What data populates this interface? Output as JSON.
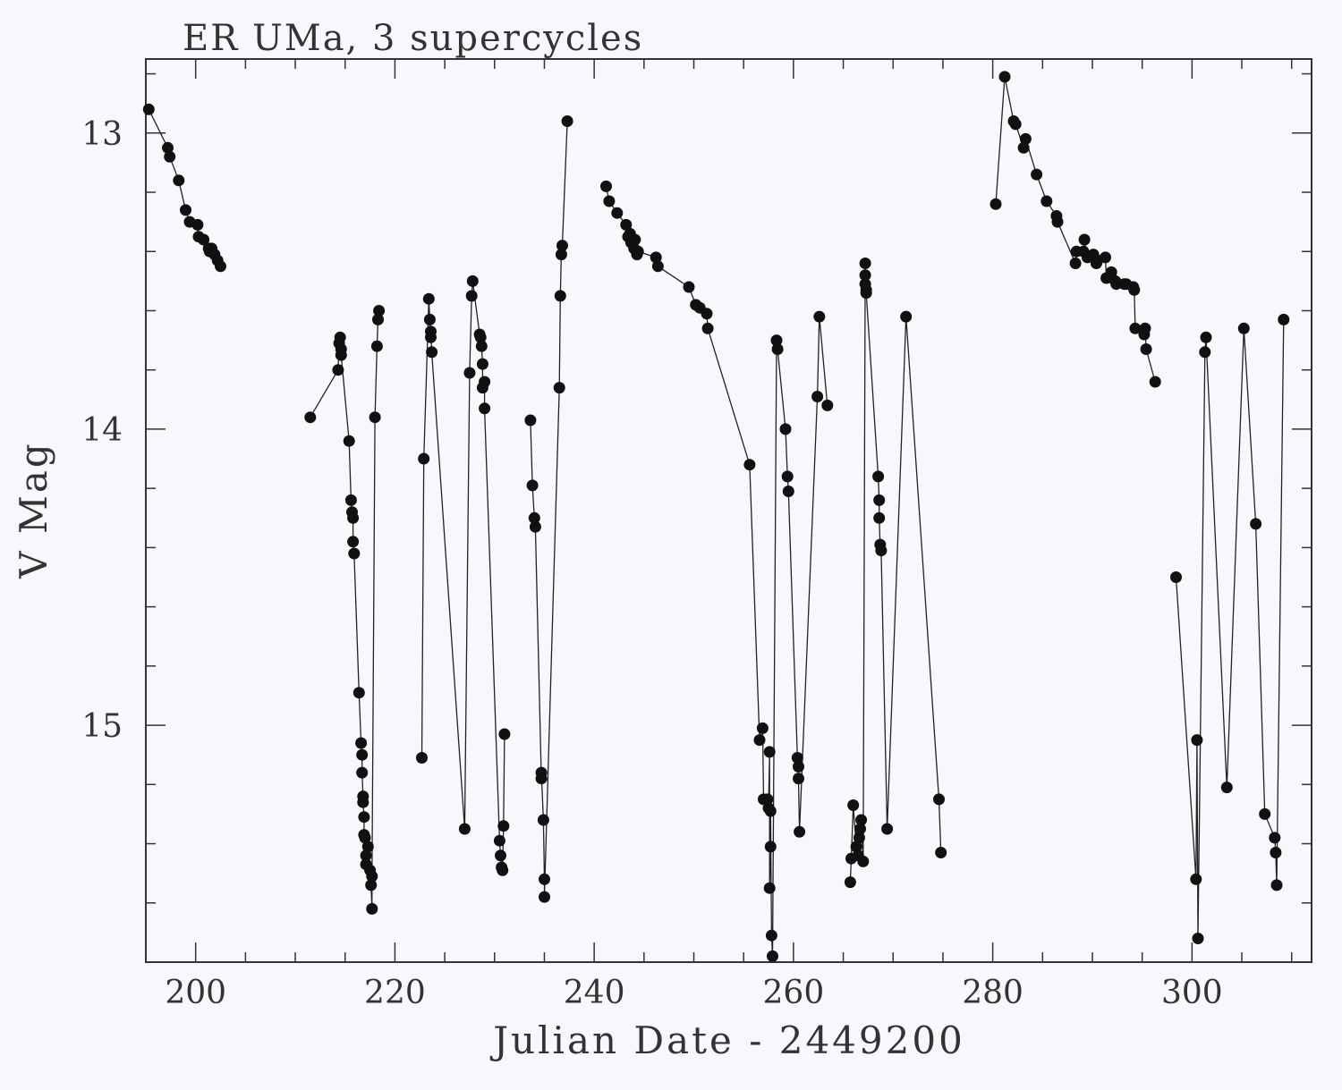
{
  "chart_data": {
    "type": "scatter",
    "title": "ER UMa, 3 supercycles",
    "xlabel": "Julian Date - 2449200",
    "ylabel": "V Mag",
    "xlim": [
      195,
      312
    ],
    "ylim": [
      15.8,
      12.75
    ],
    "y_inverted": true,
    "x_ticks": [
      200,
      220,
      240,
      260,
      280,
      300
    ],
    "y_ticks": [
      13,
      14,
      15
    ],
    "connected": true,
    "grid": false,
    "colors": {
      "marker": "#111111",
      "line": "#222222",
      "axis": "#333333",
      "background": "#f7f8fb"
    },
    "series": [
      {
        "x": [
          195.3,
          197.2,
          197.4,
          198.3,
          199.0,
          199.4,
          200.2,
          200.3,
          200.8,
          201.3,
          201.4,
          201.6,
          201.9,
          202.2,
          202.5
        ],
        "y": [
          12.92,
          13.05,
          13.08,
          13.16,
          13.26,
          13.3,
          13.31,
          13.35,
          13.36,
          13.39,
          13.4,
          13.39,
          13.41,
          13.43,
          13.45
        ]
      },
      {
        "x": [
          211.5,
          214.3,
          214.4,
          214.5,
          214.6,
          214.6,
          215.4,
          215.6,
          215.7,
          215.8,
          215.8,
          215.9,
          216.4,
          216.6,
          216.7,
          216.7,
          216.8,
          216.8,
          216.9,
          216.9,
          217.0,
          217.1,
          217.1,
          217.3,
          217.5,
          217.6,
          217.7,
          217.7,
          218.0,
          218.2,
          218.3,
          218.4
        ],
        "y": [
          13.96,
          13.8,
          13.71,
          13.69,
          13.73,
          13.75,
          14.04,
          14.24,
          14.28,
          14.3,
          14.38,
          14.42,
          14.89,
          15.06,
          15.1,
          15.16,
          15.24,
          15.26,
          15.31,
          15.37,
          15.38,
          15.44,
          15.47,
          15.41,
          15.49,
          15.54,
          15.62,
          15.51,
          13.96,
          13.72,
          13.63,
          13.6
        ]
      },
      {
        "x": [
          222.7,
          222.9,
          223.4,
          223.5,
          223.6,
          223.6,
          223.7,
          227.0,
          227.5,
          227.7,
          227.8,
          228.5,
          228.6,
          228.7,
          228.8,
          228.8,
          229.0,
          229.0,
          230.5,
          230.6,
          230.7,
          230.8,
          230.9,
          231.0
        ],
        "y": [
          15.11,
          14.1,
          13.56,
          13.63,
          13.69,
          13.67,
          13.74,
          15.35,
          13.81,
          13.55,
          13.5,
          13.68,
          13.69,
          13.72,
          13.78,
          13.86,
          13.84,
          13.93,
          15.39,
          15.44,
          15.48,
          15.49,
          15.34,
          15.03
        ]
      },
      {
        "x": [
          233.6,
          233.8,
          234.0,
          234.1,
          234.7,
          234.7,
          234.9,
          235.0,
          235.0,
          236.5,
          236.6,
          236.7,
          236.8,
          237.3
        ],
        "y": [
          13.97,
          14.19,
          14.3,
          14.33,
          15.18,
          15.16,
          15.32,
          15.52,
          15.58,
          13.86,
          13.55,
          13.41,
          13.38,
          12.96
        ]
      },
      {
        "x": [
          241.2,
          241.5,
          242.3,
          243.2,
          243.4,
          243.6,
          243.7,
          244.0,
          244.1,
          244.3,
          244.4,
          246.2,
          246.4,
          249.5,
          250.2,
          250.6,
          251.3,
          251.4,
          255.6,
          256.6,
          256.9,
          257.0
        ],
        "y": [
          13.18,
          13.23,
          13.27,
          13.31,
          13.35,
          13.34,
          13.37,
          13.39,
          13.36,
          13.41,
          13.4,
          13.42,
          13.45,
          13.52,
          13.58,
          13.59,
          13.61,
          13.66,
          14.12,
          15.05,
          15.01,
          15.25
        ]
      },
      {
        "x": [
          257.4,
          257.5,
          257.6,
          257.6,
          257.7,
          257.7,
          257.8,
          257.9,
          258.3,
          258.4,
          259.2,
          259.4,
          259.5,
          260.4,
          260.5,
          260.5,
          260.6,
          262.4,
          262.6,
          263.4
        ],
        "y": [
          15.25,
          15.28,
          15.09,
          15.55,
          15.41,
          15.29,
          15.71,
          15.78,
          13.7,
          13.73,
          14.0,
          14.16,
          14.21,
          15.11,
          15.14,
          15.18,
          15.36,
          13.89,
          13.62,
          13.92
        ]
      },
      {
        "x": [
          265.7,
          265.8,
          266.0,
          266.3,
          266.5,
          266.6,
          266.7,
          266.8,
          267.0,
          267.2,
          267.2,
          267.2,
          267.3,
          267.3,
          268.5,
          268.6,
          268.6,
          268.7,
          268.8,
          269.4,
          271.3,
          274.6,
          274.8
        ],
        "y": [
          15.53,
          15.45,
          15.27,
          15.41,
          15.44,
          15.38,
          15.35,
          15.32,
          15.46,
          13.44,
          13.48,
          13.51,
          13.53,
          13.54,
          14.16,
          14.24,
          14.3,
          14.39,
          14.41,
          15.35,
          13.62,
          15.25,
          15.43
        ]
      },
      {
        "x": [
          280.3,
          281.2,
          282.1,
          282.3,
          283.1,
          283.3,
          284.4,
          285.4,
          286.4,
          286.5,
          288.3,
          288.4,
          289.1,
          289.2,
          289.5,
          290.1,
          290.4,
          290.5,
          291.3,
          291.4,
          291.9,
          292.3,
          292.4,
          293.2,
          293.4,
          294.1,
          294.2,
          294.3,
          295.2,
          295.3,
          295.4,
          296.3
        ],
        "y": [
          13.24,
          12.81,
          12.96,
          12.97,
          13.05,
          13.02,
          13.14,
          13.23,
          13.28,
          13.3,
          13.44,
          13.4,
          13.4,
          13.36,
          13.42,
          13.41,
          13.44,
          13.43,
          13.42,
          13.49,
          13.47,
          13.5,
          13.51,
          13.51,
          13.51,
          13.52,
          13.53,
          13.66,
          13.68,
          13.66,
          13.73,
          13.84
        ]
      },
      {
        "x": [
          298.4,
          300.4,
          300.5,
          300.6,
          301.3,
          301.4,
          303.5,
          305.2,
          306.4,
          307.3,
          308.3,
          308.4,
          308.5,
          309.2
        ],
        "y": [
          14.5,
          15.52,
          15.05,
          15.72,
          13.74,
          13.69,
          15.21,
          13.66,
          14.32,
          15.3,
          15.38,
          15.43,
          15.54,
          13.63
        ]
      }
    ]
  }
}
